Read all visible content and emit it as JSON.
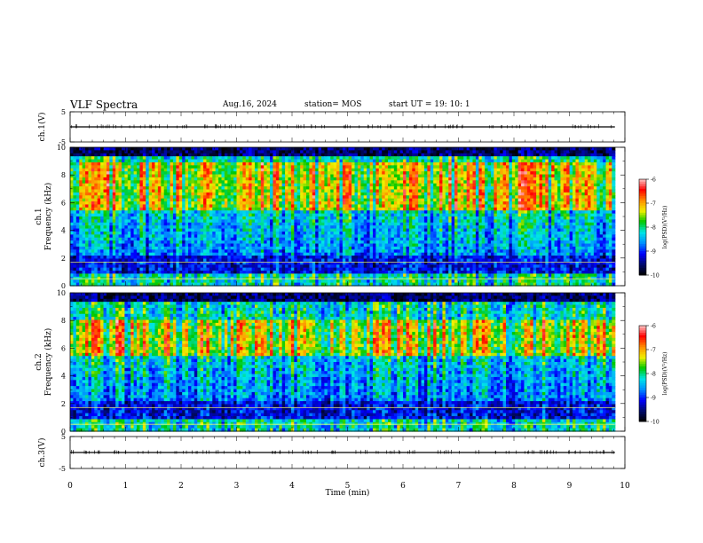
{
  "header": {
    "title": "VLF Spectra",
    "date": "Aug.16, 2024",
    "station": "station= MOS",
    "start": "start  UT  =   19: 10: 1"
  },
  "chart_data": [
    {
      "type": "line",
      "ylabel": "ch.1(V)",
      "ylim": [
        -5,
        5
      ],
      "y_ticks": [
        "5",
        "-5"
      ],
      "baseline_value": 0
    },
    {
      "type": "heatmap",
      "ylabel": "ch.1\nFrequency (kHz)",
      "ylabel_line1": "ch.1",
      "ylabel_line2": "Frequency (kHz)",
      "ylim": [
        0,
        10
      ],
      "y_ticks": [
        "0",
        "2",
        "4",
        "6",
        "8",
        "10"
      ],
      "colorbar": {
        "label": "log(PSD)(V²/Hz)",
        "range": [
          -10,
          -6
        ],
        "ticks": [
          "-6",
          "-7",
          "-8",
          "-9",
          "-10"
        ]
      },
      "intense_band_khz": [
        5.5,
        9
      ],
      "line_khz": [
        0.5,
        1.7
      ]
    },
    {
      "type": "heatmap",
      "ylabel": "ch.2\nFrequency (kHz)",
      "ylabel_line1": "ch.2",
      "ylabel_line2": "Frequency (kHz)",
      "ylim": [
        0,
        10
      ],
      "y_ticks": [
        "0",
        "2",
        "4",
        "6",
        "8",
        "10"
      ],
      "colorbar": {
        "label": "log(PSD)(V²/Hz)",
        "range": [
          -10,
          -6
        ],
        "ticks": [
          "-6",
          "-7",
          "-8",
          "-9",
          "-10"
        ]
      },
      "intense_band_khz": [
        5.5,
        8
      ],
      "line_khz": [
        0.5,
        1.7
      ]
    },
    {
      "type": "line",
      "ylabel": "ch.3(V)",
      "ylim": [
        -5,
        5
      ],
      "y_ticks": [
        "5",
        "-5"
      ],
      "baseline_value": 0
    }
  ],
  "x_axis": {
    "label": "Time  (min)",
    "range": [
      0,
      10
    ],
    "ticks": [
      "0",
      "1",
      "2",
      "3",
      "4",
      "5",
      "6",
      "7",
      "8",
      "9",
      "10"
    ],
    "data_end": 9.82
  },
  "colors": {
    "colormap": [
      "#000000",
      "#000a6e",
      "#0000ff",
      "#0090ff",
      "#00e6e6",
      "#00c800",
      "#f0f000",
      "#ff8c00",
      "#ff0000",
      "#ffc8c8"
    ]
  }
}
